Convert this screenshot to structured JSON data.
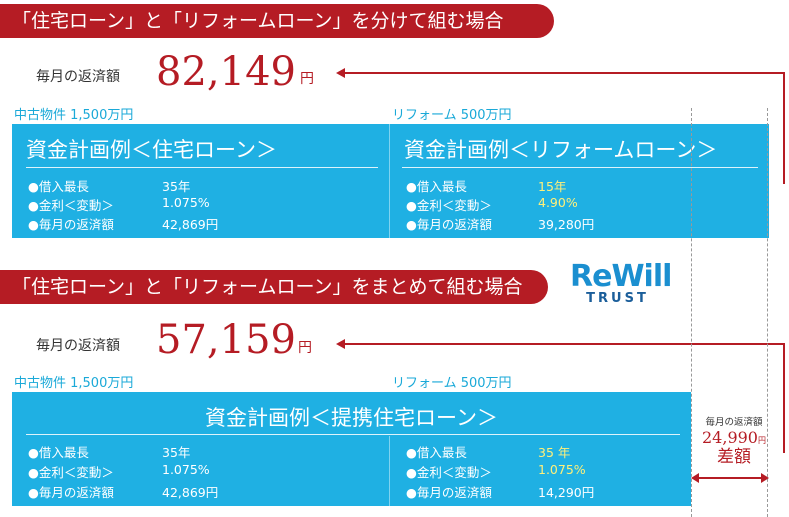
{
  "top": {
    "banner": "「住宅ローン」と「リフォームローン」を分けて組む場合",
    "monthly_label": "毎月の返済額",
    "amount": "82,149",
    "yen": "円",
    "left_section_label": "中古物件 1,500万円",
    "right_section_label": "リフォーム 500万円",
    "left_panel": {
      "title": "資金計画例＜住宅ローン＞",
      "rows": [
        {
          "label": "●借入最長",
          "value": "35年"
        },
        {
          "label": "●金利＜変動＞",
          "value": "1.075%"
        },
        {
          "label": "●毎月の返済額",
          "value": "42,869円"
        }
      ]
    },
    "right_panel": {
      "title": "資金計画例＜リフォームローン＞",
      "rows": [
        {
          "label": "●借入最長",
          "value": "15年"
        },
        {
          "label": "●金利＜変動＞",
          "value": "4.90%"
        },
        {
          "label": "●毎月の返済額",
          "value": "39,280円"
        }
      ]
    }
  },
  "bottom": {
    "banner": "「住宅ローン」と「リフォームローン」をまとめて組む場合",
    "monthly_label": "毎月の返済額",
    "amount": "57,159",
    "yen": "円",
    "left_section_label": "中古物件 1,500万円",
    "right_section_label": "リフォーム 500万円",
    "panel_title": "資金計画例＜提携住宅ローン＞",
    "left_rows": [
      {
        "label": "●借入最長",
        "value": "35年"
      },
      {
        "label": "●金利＜変動＞",
        "value": "1.075%"
      },
      {
        "label": "●毎月の返済額",
        "value": "42,869円"
      }
    ],
    "right_rows": [
      {
        "label": "●借入最長",
        "value": "35 年"
      },
      {
        "label": "●金利＜変動＞",
        "value": "1.075%"
      },
      {
        "label": "●毎月の返済額",
        "value": "14,290円"
      }
    ]
  },
  "logo": {
    "main": "ReWill",
    "sub": "TRUST"
  },
  "difference": {
    "label": "毎月の返済額",
    "amount": "24,990",
    "yen": "円",
    "word": "差額"
  },
  "colors": {
    "accent_red": "#b51c24",
    "panel_blue": "#1fb0e3",
    "label_blue": "#1aa9d8",
    "highlight_yellow": "#fff07a"
  }
}
